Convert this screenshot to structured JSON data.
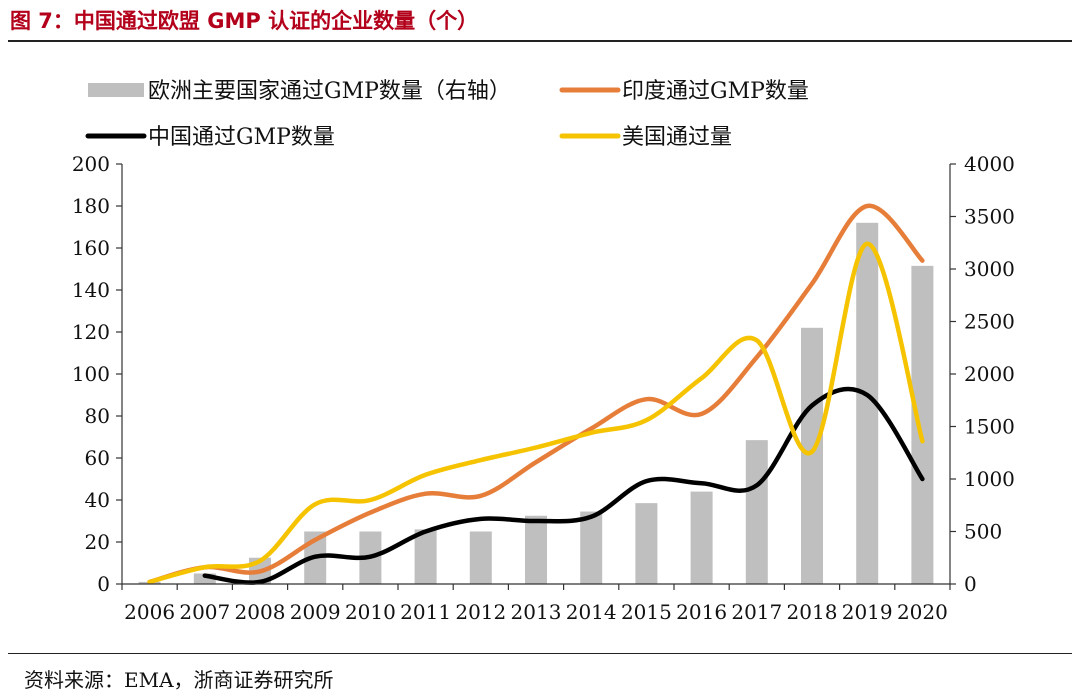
{
  "figure_title": "图 7：中国通过欧盟 GMP 认证的企业数量（个）",
  "source": "资料来源：EMA，浙商证券研究所",
  "chart_data": {
    "type": "bar+line",
    "title": "",
    "xlabel": "",
    "ylabel": "",
    "y2label": "",
    "categories": [
      "2006",
      "2007",
      "2008",
      "2009",
      "2010",
      "2011",
      "2012",
      "2013",
      "2014",
      "2015",
      "2016",
      "2017",
      "2018",
      "2019",
      "2020"
    ],
    "ylim": [
      0,
      200
    ],
    "y2lim": [
      0,
      4000
    ],
    "yticks": [
      "0",
      "20",
      "40",
      "60",
      "80",
      "100",
      "120",
      "140",
      "160",
      "180",
      "200"
    ],
    "y2ticks": [
      "0",
      "500",
      "1000",
      "1500",
      "2000",
      "2500",
      "3000",
      "3500",
      "4000"
    ],
    "legend_position": "top",
    "grid": false,
    "series": [
      {
        "name": "欧洲主要国家通过GMP数量（右轴）",
        "type": "bar",
        "axis": "right",
        "color": "#bfbfbf",
        "values": [
          20,
          100,
          250,
          500,
          500,
          520,
          500,
          650,
          690,
          770,
          880,
          1370,
          2440,
          3440,
          3030
        ]
      },
      {
        "name": "印度通过GMP数量",
        "type": "line",
        "axis": "left",
        "color": "#e67e3a",
        "values": [
          1,
          8,
          6,
          21,
          34,
          43,
          42,
          58,
          74,
          88,
          81,
          108,
          143,
          180,
          154
        ]
      },
      {
        "name": "中国通过GMP数量",
        "type": "line",
        "axis": "left",
        "color": "#000000",
        "start_index": 1,
        "values": [
          null,
          4,
          1,
          13,
          13,
          25,
          31,
          30,
          32,
          49,
          48,
          47,
          85,
          90,
          50
        ]
      },
      {
        "name": "美国通过量",
        "type": "line",
        "axis": "left",
        "color": "#f5c300",
        "values": [
          1,
          8,
          11,
          38,
          40,
          52,
          59,
          65,
          72,
          78,
          98,
          116,
          63,
          162,
          68
        ]
      }
    ]
  }
}
